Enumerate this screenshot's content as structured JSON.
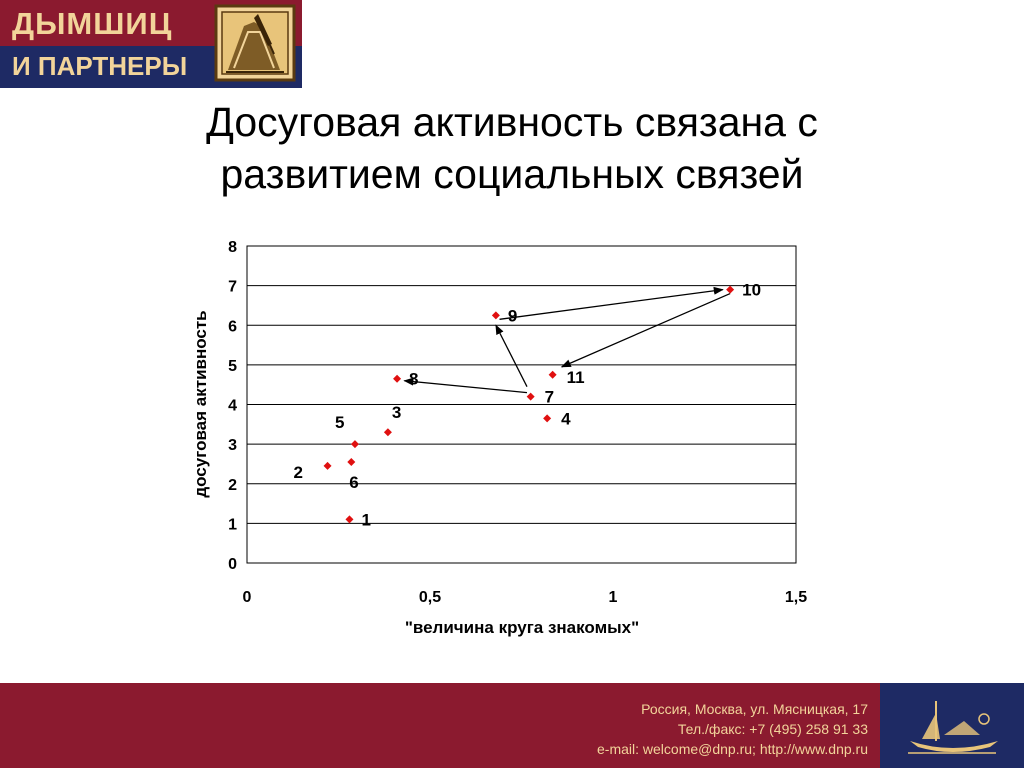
{
  "logo": {
    "line1": "ДЫМШИЦ",
    "line2": "И ПАРТНЕРЫ"
  },
  "title": {
    "line1": "Досуговая активность связана с",
    "line2": "развитием социальных связей"
  },
  "chart_data": {
    "type": "scatter",
    "xlabel": "\"величина круга знакомых\"",
    "ylabel": "досуговая активность",
    "xlim": [
      0,
      1.5
    ],
    "ylim": [
      0,
      8
    ],
    "x_ticks": [
      "0",
      "0,5",
      "1",
      "1,5"
    ],
    "x_tick_values": [
      0,
      0.5,
      1,
      1.5
    ],
    "y_ticks": [
      "0",
      "1",
      "2",
      "3",
      "4",
      "5",
      "6",
      "7",
      "8"
    ],
    "y_tick_values": [
      0,
      1,
      2,
      3,
      4,
      5,
      6,
      7,
      8
    ],
    "grid": "horizontal",
    "marker_color": "#e01010",
    "points": [
      {
        "label": "1",
        "x": 0.28,
        "y": 1.1
      },
      {
        "label": "2",
        "x": 0.22,
        "y": 2.45
      },
      {
        "label": "3",
        "x": 0.385,
        "y": 3.3
      },
      {
        "label": "4",
        "x": 0.82,
        "y": 3.65
      },
      {
        "label": "5",
        "x": 0.295,
        "y": 3.0
      },
      {
        "label": "6",
        "x": 0.285,
        "y": 2.55
      },
      {
        "label": "7",
        "x": 0.775,
        "y": 4.2
      },
      {
        "label": "8",
        "x": 0.41,
        "y": 4.65
      },
      {
        "label": "9",
        "x": 0.68,
        "y": 6.25
      },
      {
        "label": "10",
        "x": 1.32,
        "y": 6.9
      },
      {
        "label": "11",
        "x": 0.835,
        "y": 4.75
      }
    ],
    "arrows": [
      {
        "from": [
          0.765,
          4.3
        ],
        "to": [
          0.43,
          4.6
        ]
      },
      {
        "from": [
          0.765,
          4.45
        ],
        "to": [
          0.68,
          6.0
        ]
      },
      {
        "from": [
          0.69,
          6.15
        ],
        "to": [
          1.3,
          6.9
        ]
      },
      {
        "from": [
          1.32,
          6.8
        ],
        "to": [
          0.86,
          4.95
        ]
      }
    ]
  },
  "footer": {
    "address": "Россия, Москва, ул. Мясницкая, 17",
    "phone": "Тел./факс: +7 (495) 258 91 33",
    "contacts": "e-mail: welcome@dnp.ru; http://www.dnp.ru"
  }
}
